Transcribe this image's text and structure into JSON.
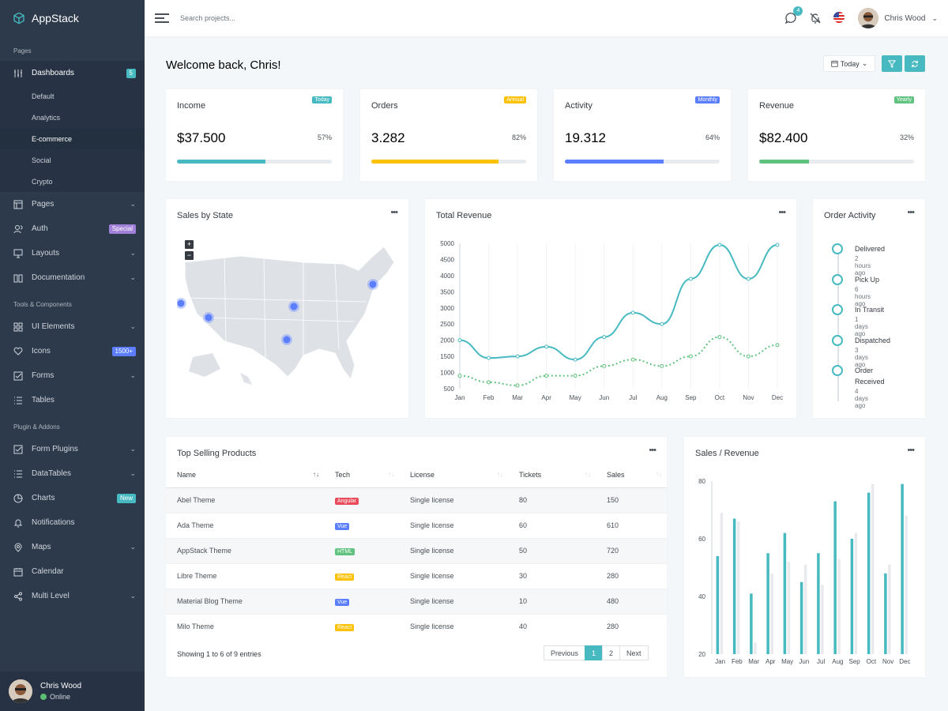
{
  "app": {
    "name": "AppStack"
  },
  "sidebar": {
    "sections": [
      "Pages",
      "Tools & Components",
      "Plugin & Addons"
    ],
    "dashboards": {
      "label": "Dashboards",
      "badge": "5",
      "subitems": [
        "Default",
        "Analytics",
        "E-commerce",
        "Social",
        "Crypto"
      ]
    },
    "pages_items": [
      {
        "label": "Pages",
        "chevron": true
      },
      {
        "label": "Auth",
        "badge": "Special"
      },
      {
        "label": "Layouts",
        "chevron": true
      },
      {
        "label": "Documentation",
        "chevron": true
      }
    ],
    "tools_items": [
      {
        "label": "UI Elements",
        "chevron": true
      },
      {
        "label": "Icons",
        "badge": "1500+"
      },
      {
        "label": "Forms",
        "chevron": true
      },
      {
        "label": "Tables"
      }
    ],
    "plugin_items": [
      {
        "label": "Form Plugins",
        "chevron": true
      },
      {
        "label": "DataTables",
        "chevron": true
      },
      {
        "label": "Charts",
        "badge": "New"
      },
      {
        "label": "Notifications"
      },
      {
        "label": "Maps",
        "chevron": true
      },
      {
        "label": "Calendar"
      },
      {
        "label": "Multi Level",
        "chevron": true
      }
    ],
    "user": {
      "name": "Chris Wood",
      "status": "Online"
    }
  },
  "topbar": {
    "search_placeholder": "Search projects...",
    "messages_count": "4",
    "user_name": "Chris Wood"
  },
  "main": {
    "welcome": "Welcome back, Chris!",
    "date_button": "Today"
  },
  "stats": [
    {
      "title": "Income",
      "badge": "Today",
      "value": "$37.500",
      "percent": "57%",
      "progress": 0.57,
      "color": "#47bac1"
    },
    {
      "title": "Orders",
      "badge": "Annual",
      "value": "3.282",
      "percent": "82%",
      "progress": 0.82,
      "color": "#fcc100"
    },
    {
      "title": "Activity",
      "badge": "Monthly",
      "value": "19.312",
      "percent": "64%",
      "progress": 0.64,
      "color": "#5b7dff"
    },
    {
      "title": "Revenue",
      "badge": "Yearly",
      "value": "$82.400",
      "percent": "32%",
      "progress": 0.32,
      "color": "#5fc27e"
    }
  ],
  "cards": {
    "sales_by_state": "Sales by State",
    "total_revenue": "Total Revenue",
    "order_activity": "Order Activity",
    "top_selling": "Top Selling Products",
    "sales_revenue": "Sales / Revenue"
  },
  "order_activity": [
    {
      "title": "Delivered",
      "time": "2 hours ago"
    },
    {
      "title": "Pick Up",
      "time": "6 hours ago"
    },
    {
      "title": "In Transit",
      "time": "1 days ago"
    },
    {
      "title": "Dispatched",
      "time": "3 days ago"
    },
    {
      "title": "Order Received",
      "time": "4 days ago"
    }
  ],
  "products": {
    "columns": [
      "Name",
      "Tech",
      "License",
      "Tickets",
      "Sales"
    ],
    "rows": [
      {
        "name": "Abel Theme",
        "tech": "Angular",
        "tech_color": "#e94b5a",
        "license": "Single license",
        "tickets": "80",
        "sales": "150"
      },
      {
        "name": "Ada Theme",
        "tech": "Vue",
        "tech_color": "#5b7dff",
        "license": "Single license",
        "tickets": "60",
        "sales": "610"
      },
      {
        "name": "AppStack Theme",
        "tech": "HTML",
        "tech_color": "#5fc27e",
        "license": "Single license",
        "tickets": "50",
        "sales": "720"
      },
      {
        "name": "Libre Theme",
        "tech": "React",
        "tech_color": "#fcc100",
        "license": "Single license",
        "tickets": "30",
        "sales": "280"
      },
      {
        "name": "Material Blog Theme",
        "tech": "Vue",
        "tech_color": "#5b7dff",
        "license": "Single license",
        "tickets": "10",
        "sales": "480"
      },
      {
        "name": "Milo Theme",
        "tech": "React",
        "tech_color": "#fcc100",
        "license": "Single license",
        "tickets": "40",
        "sales": "280"
      }
    ],
    "footer": "Showing 1 to 6 of 9 entries",
    "pagination": [
      "Previous",
      "1",
      "2",
      "Next"
    ]
  },
  "chart_data": [
    {
      "type": "line",
      "categories": [
        "Jan",
        "Feb",
        "Mar",
        "Apr",
        "May",
        "Jun",
        "Jul",
        "Aug",
        "Sep",
        "Oct",
        "Nov",
        "Dec"
      ],
      "ylim": [
        500,
        5000
      ],
      "yticks": [
        500,
        1000,
        1500,
        2000,
        2500,
        3000,
        3500,
        4000,
        4500,
        5000
      ],
      "series": [
        {
          "values": [
            2000,
            1450,
            1500,
            1800,
            1400,
            2100,
            2850,
            2500,
            3900,
            4950,
            3900,
            4950
          ],
          "color": "#47bac1",
          "style": "solid"
        },
        {
          "values": [
            900,
            700,
            600,
            900,
            900,
            1200,
            1400,
            1200,
            1500,
            2100,
            1500,
            1850
          ],
          "color": "#5fc27e",
          "style": "dotted"
        }
      ]
    },
    {
      "type": "bar",
      "categories": [
        "Jan",
        "Feb",
        "Mar",
        "Apr",
        "May",
        "Jun",
        "Jul",
        "Aug",
        "Sep",
        "Oct",
        "Nov",
        "Dec"
      ],
      "ylim": [
        20,
        80
      ],
      "yticks": [
        20,
        40,
        60,
        80
      ],
      "series": [
        {
          "values": [
            54,
            67,
            41,
            55,
            62,
            45,
            55,
            73,
            60,
            76,
            48,
            79
          ],
          "color": "#47bac1"
        },
        {
          "values": [
            69,
            66,
            24,
            48,
            52,
            51,
            44,
            53,
            62,
            79,
            51,
            68
          ],
          "color": "#e8eaed"
        }
      ]
    }
  ],
  "map": {
    "zoom_in": "+",
    "zoom_out": "−"
  }
}
